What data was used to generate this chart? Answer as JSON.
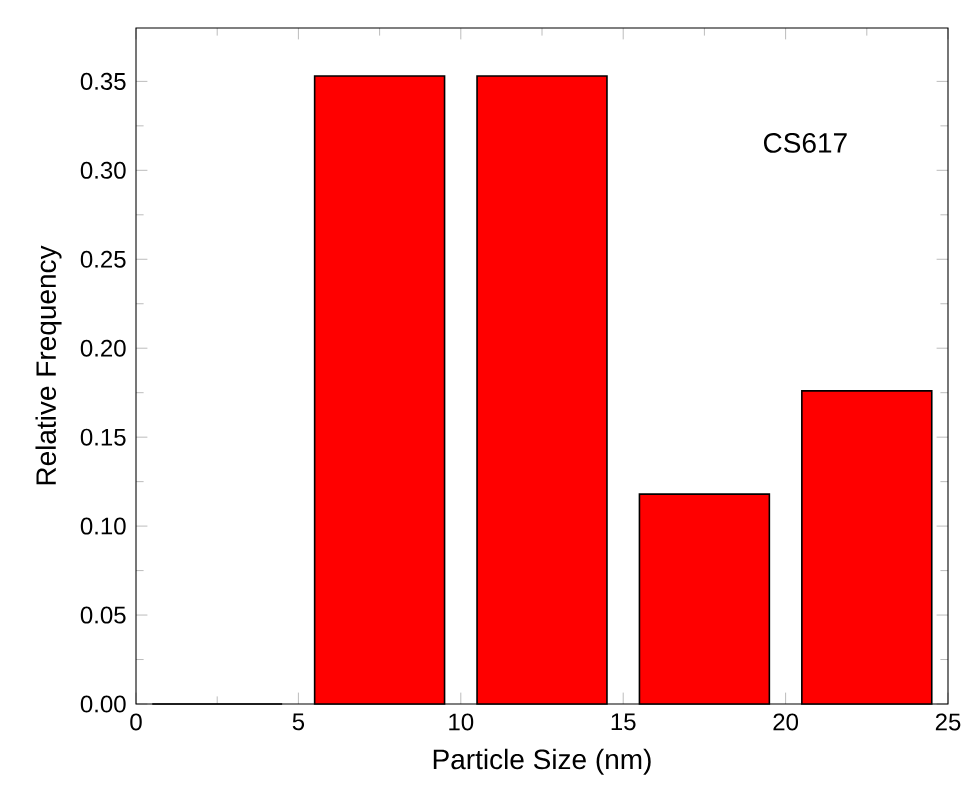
{
  "chart_data": {
    "type": "histogram",
    "xlabel": "Particle Size (nm)",
    "ylabel": "Relative Frequency",
    "bins": [
      0,
      5,
      10,
      15,
      20,
      25
    ],
    "values": [
      0,
      0.353,
      0.353,
      0.118,
      0.176
    ],
    "color": "#ff0000",
    "xlim": [
      0,
      25
    ],
    "xticks": [
      0,
      5,
      10,
      15,
      20,
      25
    ],
    "ylim": [
      0,
      0.38
    ],
    "yticks": [
      {
        "value": 0,
        "label": "0.00"
      },
      0.05,
      {
        "value": 0.1,
        "label": "0.10"
      },
      0.15,
      {
        "value": 0.2,
        "label": "0.20"
      },
      0.25,
      {
        "value": 0.3,
        "label": "0.30"
      },
      0.35
    ],
    "annotations": [
      "CS617"
    ]
  }
}
